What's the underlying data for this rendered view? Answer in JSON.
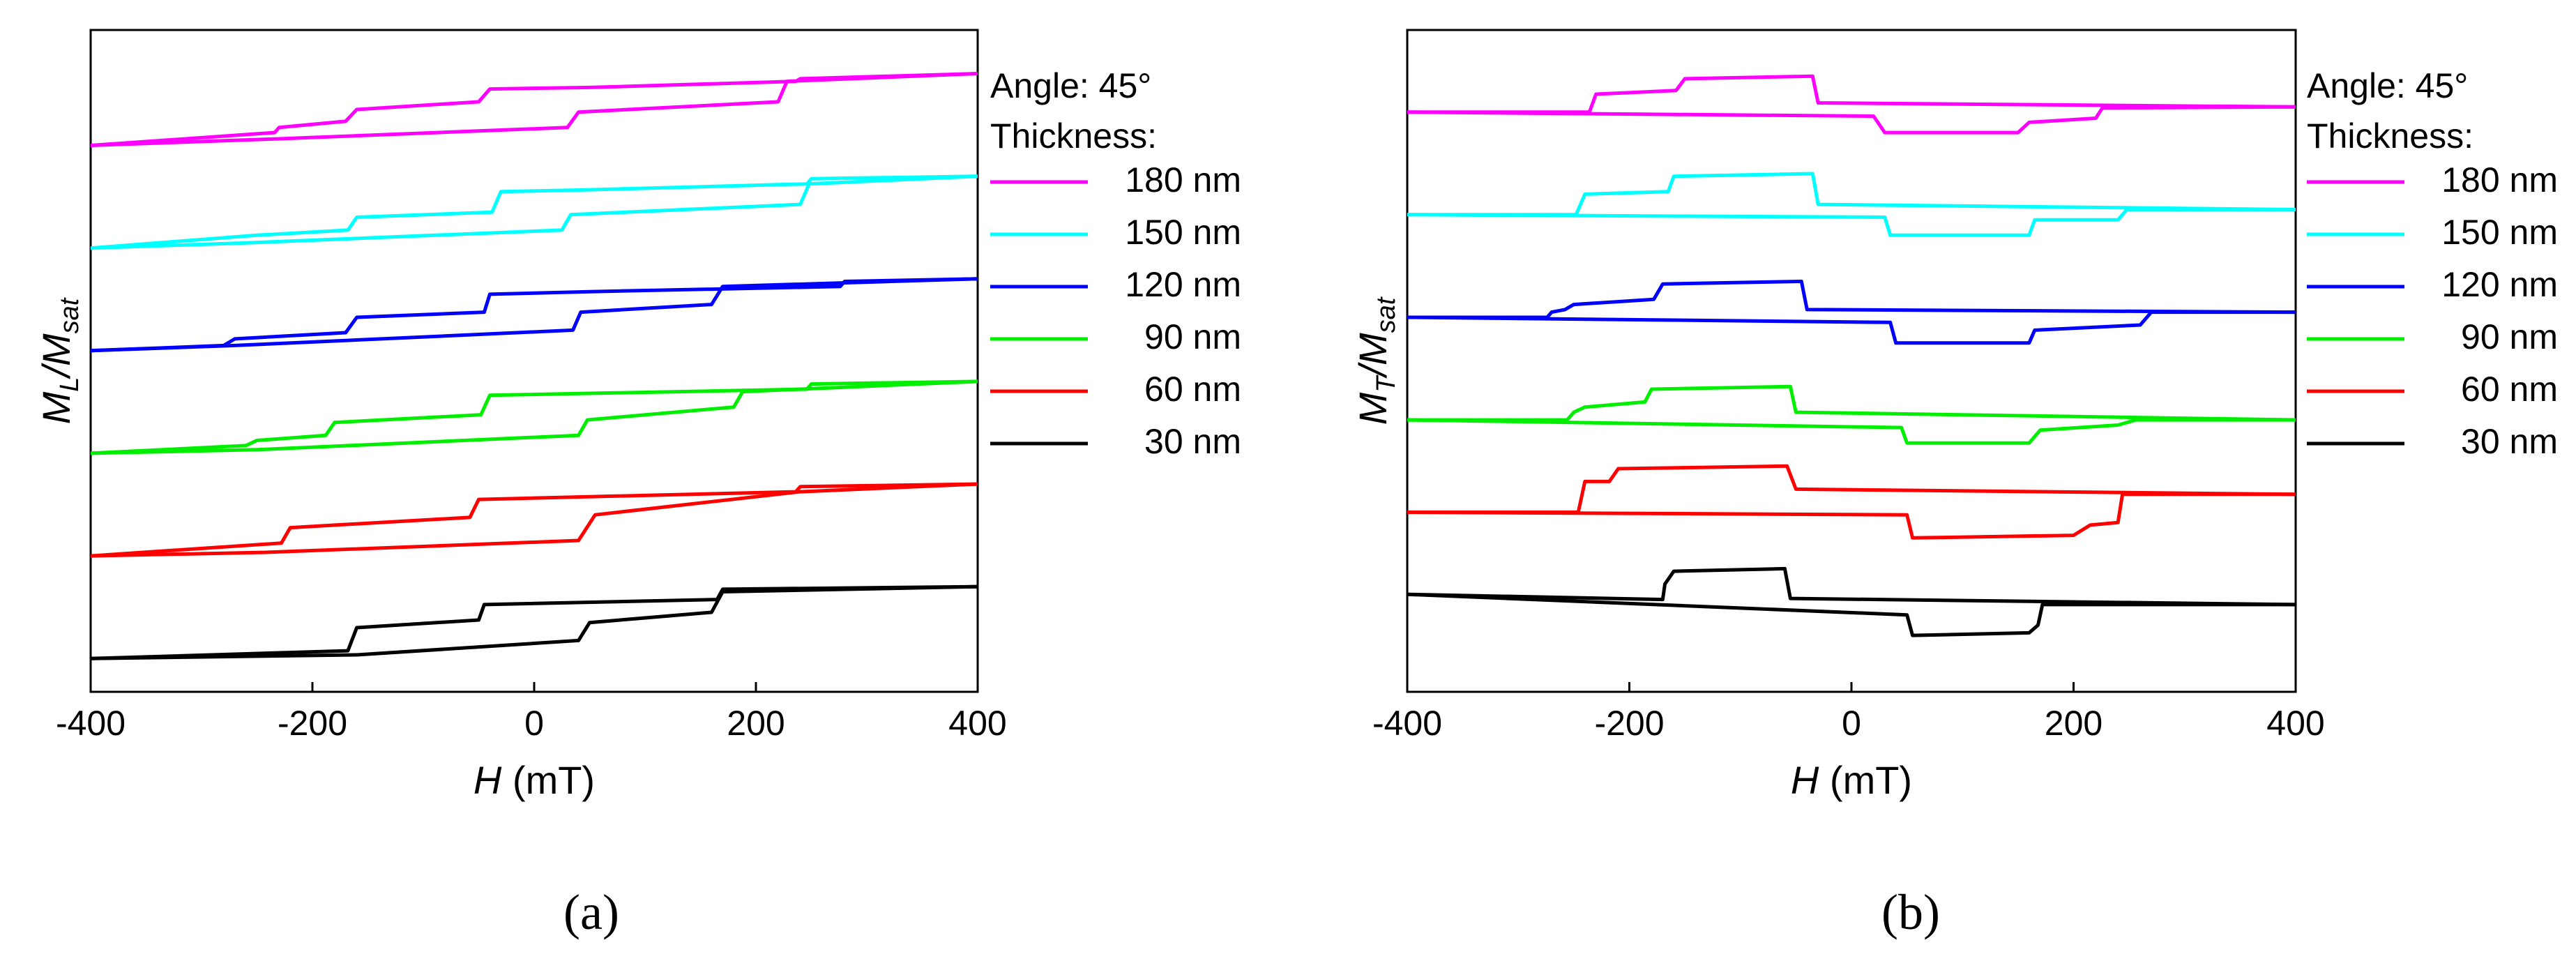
{
  "chart_data": [
    {
      "type": "line",
      "panel_label": "(a)",
      "xlabel": "H (mT)",
      "xlabel_italic": "H",
      "xlabel_unit": " (mT)",
      "ylabel": "M_L/M_sat",
      "ylabel_main": "M",
      "ylabel_sub1": "L",
      "ylabel_sep": "/M",
      "ylabel_sub2": "sat",
      "xlim": [
        -400,
        400
      ],
      "xticks": [
        "-400",
        "-200",
        "0",
        "200",
        "400"
      ],
      "xtick_values": [
        -400,
        -200,
        0,
        200,
        400
      ],
      "legend_title_1": "Angle: 45°",
      "legend_title_2": "Thickness:",
      "legend_position": "right",
      "series": [
        {
          "name": "180 nm",
          "color": "#ff00ff",
          "offset": 10.0,
          "down": [
            [
              400,
              1.55
            ],
            [
              240,
              1.45
            ],
            [
              236,
              1.4
            ],
            [
              50,
              1.28
            ],
            [
              -40,
              1.25
            ],
            [
              -50,
              1.0
            ],
            [
              -160,
              0.85
            ],
            [
              -170,
              0.62
            ],
            [
              -230,
              0.5
            ],
            [
              -234,
              0.4
            ],
            [
              -400,
              0.15
            ]
          ],
          "up": [
            [
              -400,
              0.15
            ],
            [
              -230,
              0.28
            ],
            [
              30,
              0.5
            ],
            [
              40,
              0.8
            ],
            [
              220,
              1.0
            ],
            [
              228,
              1.4
            ],
            [
              400,
              1.55
            ]
          ]
        },
        {
          "name": "150 nm",
          "color": "#00ffff",
          "offset": 8.0,
          "down": [
            [
              400,
              1.55
            ],
            [
              250,
              1.5
            ],
            [
              246,
              1.4
            ],
            [
              40,
              1.28
            ],
            [
              -30,
              1.25
            ],
            [
              -38,
              0.85
            ],
            [
              -160,
              0.75
            ],
            [
              -168,
              0.5
            ],
            [
              -250,
              0.4
            ],
            [
              -400,
              0.15
            ]
          ],
          "up": [
            [
              -400,
              0.15
            ],
            [
              -260,
              0.25
            ],
            [
              25,
              0.5
            ],
            [
              33,
              0.8
            ],
            [
              240,
              1.0
            ],
            [
              248,
              1.4
            ],
            [
              400,
              1.55
            ]
          ]
        },
        {
          "name": "120 nm",
          "color": "#0000ff",
          "offset": 6.0,
          "down": [
            [
              400,
              1.55
            ],
            [
              280,
              1.5
            ],
            [
              276,
              1.4
            ],
            [
              50,
              1.3
            ],
            [
              -40,
              1.25
            ],
            [
              -45,
              0.9
            ],
            [
              -160,
              0.8
            ],
            [
              -170,
              0.5
            ],
            [
              -270,
              0.38
            ],
            [
              -280,
              0.25
            ],
            [
              -400,
              0.15
            ]
          ],
          "up": [
            [
              -400,
              0.15
            ],
            [
              -270,
              0.25
            ],
            [
              35,
              0.55
            ],
            [
              42,
              0.9
            ],
            [
              160,
              1.05
            ],
            [
              170,
              1.4
            ],
            [
              400,
              1.55
            ]
          ]
        },
        {
          "name": "90 nm",
          "color": "#00ee00",
          "offset": 4.0,
          "down": [
            [
              400,
              1.55
            ],
            [
              250,
              1.5
            ],
            [
              246,
              1.4
            ],
            [
              -40,
              1.28
            ],
            [
              -48,
              0.9
            ],
            [
              -180,
              0.75
            ],
            [
              -188,
              0.5
            ],
            [
              -250,
              0.4
            ],
            [
              -260,
              0.3
            ],
            [
              -400,
              0.15
            ]
          ],
          "up": [
            [
              -400,
              0.15
            ],
            [
              -250,
              0.22
            ],
            [
              40,
              0.5
            ],
            [
              48,
              0.8
            ],
            [
              180,
              1.05
            ],
            [
              188,
              1.35
            ],
            [
              400,
              1.55
            ]
          ]
        },
        {
          "name": "60 nm",
          "color": "#ff0000",
          "offset": 2.0,
          "down": [
            [
              400,
              1.55
            ],
            [
              240,
              1.5
            ],
            [
              236,
              1.4
            ],
            [
              -50,
              1.25
            ],
            [
              -58,
              0.9
            ],
            [
              -220,
              0.7
            ],
            [
              -228,
              0.4
            ],
            [
              -400,
              0.15
            ]
          ],
          "up": [
            [
              -400,
              0.15
            ],
            [
              -240,
              0.22
            ],
            [
              40,
              0.45
            ],
            [
              55,
              0.95
            ],
            [
              240,
              1.4
            ],
            [
              400,
              1.55
            ]
          ]
        },
        {
          "name": "30 nm",
          "color": "#000000",
          "offset": 0.0,
          "down": [
            [
              400,
              1.55
            ],
            [
              170,
              1.5
            ],
            [
              165,
              1.3
            ],
            [
              -45,
              1.2
            ],
            [
              -50,
              0.9
            ],
            [
              -160,
              0.75
            ],
            [
              -168,
              0.3
            ],
            [
              -400,
              0.15
            ]
          ],
          "up": [
            [
              -400,
              0.15
            ],
            [
              -160,
              0.22
            ],
            [
              40,
              0.5
            ],
            [
              50,
              0.85
            ],
            [
              160,
              1.05
            ],
            [
              170,
              1.45
            ],
            [
              400,
              1.55
            ]
          ]
        }
      ]
    },
    {
      "type": "line",
      "panel_label": "(b)",
      "xlabel": "H (mT)",
      "xlabel_italic": "H",
      "xlabel_unit": " (mT)",
      "ylabel": "M_T/M_sat",
      "ylabel_main": "M",
      "ylabel_sub1": "T",
      "ylabel_sep": "/M",
      "ylabel_sub2": "sat",
      "xlim": [
        -400,
        400
      ],
      "xticks": [
        "-400",
        "-200",
        "0",
        "200",
        "400"
      ],
      "xtick_values": [
        -400,
        -200,
        0,
        200,
        400
      ],
      "legend_title_1": "Angle: 45°",
      "legend_title_2": "Thickness:",
      "legend_position": "right",
      "series": [
        {
          "name": "180 nm",
          "color": "#ff00ff",
          "offset": 10.0,
          "down": [
            [
              400,
              0.9
            ],
            [
              -30,
              0.98
            ],
            [
              -35,
              1.5
            ],
            [
              -150,
              1.45
            ],
            [
              -158,
              1.22
            ],
            [
              -230,
              1.15
            ],
            [
              -236,
              0.8
            ],
            [
              -400,
              0.8
            ]
          ],
          "up": [
            [
              -400,
              0.8
            ],
            [
              20,
              0.72
            ],
            [
              30,
              0.4
            ],
            [
              150,
              0.4
            ],
            [
              160,
              0.6
            ],
            [
              220,
              0.68
            ],
            [
              226,
              0.88
            ],
            [
              400,
              0.9
            ]
          ]
        },
        {
          "name": "150 nm",
          "color": "#00ffff",
          "offset": 8.0,
          "down": [
            [
              400,
              0.9
            ],
            [
              -30,
              1.0
            ],
            [
              -35,
              1.6
            ],
            [
              -160,
              1.55
            ],
            [
              -165,
              1.25
            ],
            [
              -240,
              1.2
            ],
            [
              -248,
              0.8
            ],
            [
              -400,
              0.8
            ]
          ],
          "up": [
            [
              -400,
              0.8
            ],
            [
              30,
              0.75
            ],
            [
              35,
              0.4
            ],
            [
              160,
              0.4
            ],
            [
              165,
              0.7
            ],
            [
              240,
              0.7
            ],
            [
              248,
              0.9
            ],
            [
              400,
              0.9
            ]
          ]
        },
        {
          "name": "120 nm",
          "color": "#0000ff",
          "offset": 6.0,
          "down": [
            [
              400,
              0.9
            ],
            [
              -40,
              0.95
            ],
            [
              -45,
              1.5
            ],
            [
              -170,
              1.45
            ],
            [
              -178,
              1.15
            ],
            [
              -250,
              1.05
            ],
            [
              -258,
              0.95
            ],
            [
              -270,
              0.9
            ],
            [
              -274,
              0.8
            ],
            [
              -400,
              0.8
            ]
          ],
          "up": [
            [
              -400,
              0.8
            ],
            [
              35,
              0.7
            ],
            [
              40,
              0.3
            ],
            [
              160,
              0.3
            ],
            [
              165,
              0.55
            ],
            [
              260,
              0.65
            ],
            [
              270,
              0.9
            ],
            [
              400,
              0.9
            ]
          ]
        },
        {
          "name": "90 nm",
          "color": "#00ee00",
          "offset": 4.0,
          "down": [
            [
              400,
              0.8
            ],
            [
              -50,
              0.95
            ],
            [
              -55,
              1.45
            ],
            [
              -180,
              1.4
            ],
            [
              -186,
              1.15
            ],
            [
              -240,
              1.05
            ],
            [
              -250,
              0.95
            ],
            [
              -256,
              0.8
            ],
            [
              -400,
              0.8
            ]
          ],
          "up": [
            [
              -400,
              0.8
            ],
            [
              45,
              0.65
            ],
            [
              50,
              0.35
            ],
            [
              160,
              0.35
            ],
            [
              170,
              0.6
            ],
            [
              240,
              0.7
            ],
            [
              256,
              0.8
            ],
            [
              400,
              0.8
            ]
          ]
        },
        {
          "name": "60 nm",
          "color": "#ff0000",
          "offset": 2.0,
          "down": [
            [
              400,
              1.35
            ],
            [
              -50,
              1.45
            ],
            [
              -58,
              1.9
            ],
            [
              -210,
              1.85
            ],
            [
              -218,
              1.6
            ],
            [
              -240,
              1.6
            ],
            [
              -246,
              1.0
            ],
            [
              -400,
              1.0
            ]
          ],
          "up": [
            [
              -400,
              1.0
            ],
            [
              50,
              0.95
            ],
            [
              55,
              0.5
            ],
            [
              200,
              0.55
            ],
            [
              215,
              0.75
            ],
            [
              240,
              0.8
            ],
            [
              244,
              1.35
            ],
            [
              400,
              1.35
            ]
          ]
        },
        {
          "name": "30 nm",
          "color": "#000000",
          "offset": 0.0,
          "down": [
            [
              400,
              1.2
            ],
            [
              -55,
              1.32
            ],
            [
              -60,
              1.9
            ],
            [
              -160,
              1.85
            ],
            [
              -168,
              1.6
            ],
            [
              -170,
              1.3
            ],
            [
              -400,
              1.4
            ]
          ],
          "up": [
            [
              -400,
              1.4
            ],
            [
              50,
              1.0
            ],
            [
              55,
              0.6
            ],
            [
              160,
              0.65
            ],
            [
              168,
              0.8
            ],
            [
              172,
              1.2
            ],
            [
              400,
              1.2
            ]
          ]
        }
      ]
    }
  ]
}
